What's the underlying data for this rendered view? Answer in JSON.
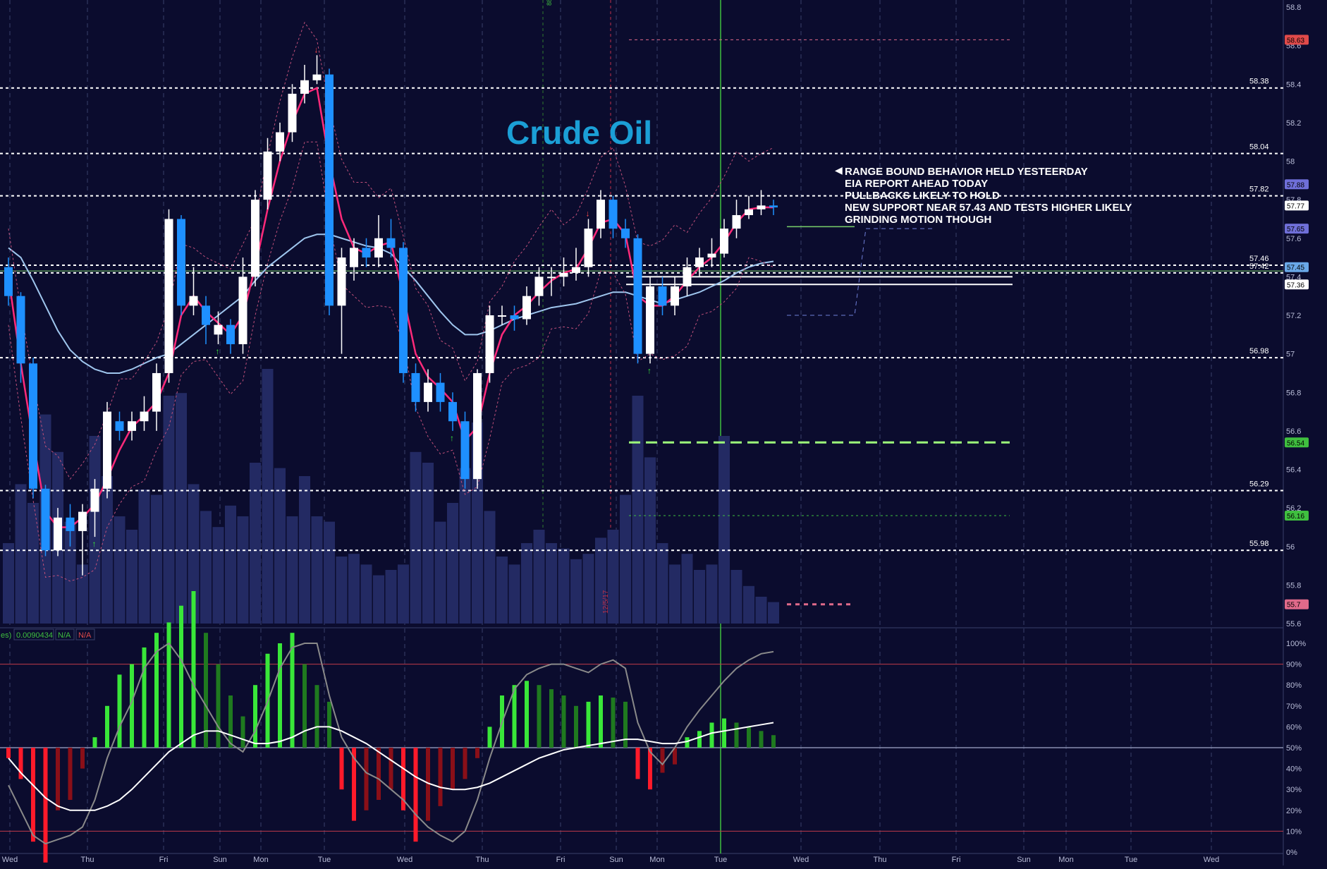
{
  "title": "Crude Oil",
  "annotation": {
    "lines": [
      "RANGE BOUND BEHAVIOR HELD YESTEERDAY",
      "EIA REPORT AHEAD TODAY",
      "PULLBACKS LIKELY TO HOLD",
      "NEW SUPPORT NEAR 57.43 AND TESTS HIGHER LIKELY",
      "GRINDING MOTION THOUGH"
    ]
  },
  "price_axis": {
    "min": 55.6,
    "max": 58.8,
    "ticks": [
      "58.8",
      "58.6",
      "58.4",
      "58.2",
      "58",
      "57.8",
      "57.6",
      "57.4",
      "57.2",
      "57",
      "56.8",
      "56.6",
      "56.4",
      "56.2",
      "56",
      "55.8",
      "55.6"
    ]
  },
  "time_axis": {
    "labels": [
      "Wed",
      "Thu",
      "Fri",
      "Sun",
      "Mon",
      "Tue",
      "Wed",
      "Thu",
      "Fri",
      "Sun",
      "Mon",
      "Tue",
      "Wed",
      "Thu",
      "Fri",
      "Sun",
      "Mon",
      "Tue",
      "Wed"
    ]
  },
  "osc_axis": {
    "ticks": [
      "100%",
      "90%",
      "80%",
      "70%",
      "60%",
      "50%",
      "40%",
      "30%",
      "20%",
      "10%",
      "0%"
    ]
  },
  "indicator_strip": {
    "left_text": "es)",
    "value": "0.0090434",
    "na1": "N/A",
    "na2": "N/A"
  },
  "vertical_marker_text": "12/5/17",
  "top_marker_text": "88",
  "chart_data": {
    "type": "candlestick",
    "title": "Crude Oil",
    "ylim": [
      55.6,
      58.8
    ],
    "colors": {
      "up": "#ffffff",
      "down": "#1e90ff",
      "ma_fast": "#ff2a7a",
      "ma_slow": "#9fc6ee",
      "volume": "#232a63",
      "support": "#9dff7a"
    },
    "levels": [
      {
        "value": 58.38,
        "label": "58.38"
      },
      {
        "value": 58.04,
        "label": "58.04"
      },
      {
        "value": 57.82,
        "label": "57.82"
      },
      {
        "value": 57.46,
        "label": "57.46"
      },
      {
        "value": 57.42,
        "label": "57.42"
      },
      {
        "value": 56.98,
        "label": "56.98"
      },
      {
        "value": 56.29,
        "label": "56.29"
      },
      {
        "value": 55.98,
        "label": "55.98"
      }
    ],
    "price_badges": [
      {
        "value": 58.63,
        "label": "58.63",
        "color": "#e04a4a"
      },
      {
        "value": 57.88,
        "label": "57.88",
        "color": "#6f6fd8"
      },
      {
        "value": 57.77,
        "label": "57.77",
        "color": "#ffffff"
      },
      {
        "value": 57.65,
        "label": "57.65",
        "color": "#6f6fd8"
      },
      {
        "value": 57.45,
        "label": "57.45",
        "color": "#6aa8e8"
      },
      {
        "value": 57.36,
        "label": "57.36",
        "color": "#ffffff"
      },
      {
        "value": 56.54,
        "label": "56.54",
        "color": "#3fbf3f"
      },
      {
        "value": 56.16,
        "label": "56.16",
        "color": "#3fbf3f"
      },
      {
        "value": 55.7,
        "label": "55.7",
        "color": "#e06a8a"
      }
    ],
    "candles": [
      [
        57.45,
        57.3,
        57.5,
        57.25
      ],
      [
        57.3,
        56.95,
        57.32,
        56.85
      ],
      [
        56.95,
        56.3,
        56.98,
        56.25
      ],
      [
        56.3,
        55.98,
        56.32,
        55.95
      ],
      [
        55.98,
        56.15,
        56.2,
        55.95
      ],
      [
        56.15,
        56.08,
        56.22,
        56.0
      ],
      [
        56.08,
        56.18,
        56.22,
        55.85
      ],
      [
        56.18,
        56.3,
        56.35,
        56.05
      ],
      [
        56.3,
        56.7,
        56.75,
        56.25
      ],
      [
        56.65,
        56.6,
        56.7,
        56.55
      ],
      [
        56.6,
        56.65,
        56.7,
        56.55
      ],
      [
        56.65,
        56.7,
        56.78,
        56.6
      ],
      [
        56.7,
        56.9,
        56.95,
        56.6
      ],
      [
        56.9,
        57.7,
        57.75,
        56.85
      ],
      [
        57.7,
        57.25,
        57.72,
        57.2
      ],
      [
        57.25,
        57.3,
        57.45,
        57.2
      ],
      [
        57.25,
        57.15,
        57.3,
        57.05
      ],
      [
        57.1,
        57.15,
        57.22,
        57.05
      ],
      [
        57.15,
        57.05,
        57.18,
        57.0
      ],
      [
        57.05,
        57.4,
        57.5,
        57.0
      ],
      [
        57.4,
        57.8,
        57.85,
        57.35
      ],
      [
        57.8,
        58.05,
        58.12,
        57.75
      ],
      [
        58.05,
        58.15,
        58.2,
        58.0
      ],
      [
        58.15,
        58.35,
        58.4,
        58.1
      ],
      [
        58.35,
        58.42,
        58.5,
        58.3
      ],
      [
        58.42,
        58.45,
        58.55,
        58.4
      ],
      [
        58.45,
        57.25,
        58.48,
        57.2
      ],
      [
        57.25,
        57.5,
        57.55,
        57.0
      ],
      [
        57.45,
        57.55,
        57.6,
        57.38
      ],
      [
        57.55,
        57.5,
        57.6,
        57.45
      ],
      [
        57.5,
        57.6,
        57.72,
        57.45
      ],
      [
        57.6,
        57.55,
        57.7,
        57.5
      ],
      [
        57.55,
        56.9,
        57.58,
        56.85
      ],
      [
        56.9,
        56.75,
        56.95,
        56.7
      ],
      [
        56.75,
        56.85,
        56.92,
        56.7
      ],
      [
        56.85,
        56.75,
        56.9,
        56.7
      ],
      [
        56.75,
        56.65,
        56.8,
        56.6
      ],
      [
        56.65,
        56.35,
        56.7,
        56.3
      ],
      [
        56.35,
        56.9,
        56.92,
        56.3
      ],
      [
        56.9,
        57.2,
        57.25,
        56.85
      ],
      [
        57.2,
        57.2,
        57.25,
        57.15
      ],
      [
        57.2,
        57.18,
        57.25,
        57.12
      ],
      [
        57.18,
        57.3,
        57.35,
        57.15
      ],
      [
        57.3,
        57.4,
        57.45,
        57.25
      ],
      [
        57.4,
        57.4,
        57.45,
        57.3
      ],
      [
        57.4,
        57.42,
        57.5,
        57.35
      ],
      [
        57.42,
        57.45,
        57.55,
        57.38
      ],
      [
        57.45,
        57.65,
        57.7,
        57.4
      ],
      [
        57.65,
        57.8,
        57.85,
        57.6
      ],
      [
        57.8,
        57.65,
        57.82,
        57.6
      ],
      [
        57.65,
        57.6,
        57.7,
        57.55
      ],
      [
        57.6,
        57.0,
        57.62,
        56.95
      ],
      [
        57.0,
        57.35,
        57.4,
        56.95
      ],
      [
        57.35,
        57.25,
        57.4,
        57.2
      ],
      [
        57.25,
        57.35,
        57.4,
        57.2
      ],
      [
        57.35,
        57.45,
        57.5,
        57.3
      ],
      [
        57.45,
        57.5,
        57.55,
        57.4
      ],
      [
        57.5,
        57.52,
        57.6,
        57.45
      ],
      [
        57.52,
        57.65,
        57.7,
        57.5
      ],
      [
        57.65,
        57.72,
        57.8,
        57.6
      ],
      [
        57.72,
        57.75,
        57.82,
        57.7
      ],
      [
        57.75,
        57.77,
        57.85,
        57.72
      ],
      [
        57.77,
        57.76,
        57.8,
        57.72
      ]
    ],
    "volume": [
      30,
      52,
      45,
      78,
      64,
      38,
      22,
      70,
      55,
      40,
      35,
      50,
      48,
      85,
      86,
      52,
      42,
      36,
      44,
      40,
      60,
      95,
      58,
      40,
      55,
      40,
      38,
      25,
      26,
      22,
      18,
      20,
      22,
      64,
      60,
      38,
      45,
      58,
      75,
      42,
      25,
      22,
      30,
      35,
      30,
      28,
      24,
      26,
      32,
      35,
      48,
      85,
      62,
      30,
      22,
      26,
      20,
      22,
      70,
      20,
      14,
      10,
      8
    ],
    "ma_fast": [
      57.4,
      56.95,
      56.55,
      56.18,
      56.1,
      56.1,
      56.15,
      56.22,
      56.35,
      56.5,
      56.62,
      56.68,
      56.75,
      56.9,
      57.2,
      57.3,
      57.22,
      57.16,
      57.1,
      57.2,
      57.45,
      57.75,
      58.0,
      58.2,
      58.35,
      58.38,
      58.0,
      57.7,
      57.55,
      57.52,
      57.56,
      57.58,
      57.3,
      57.0,
      56.88,
      56.82,
      56.75,
      56.55,
      56.62,
      56.9,
      57.1,
      57.2,
      57.25,
      57.32,
      57.38,
      57.42,
      57.44,
      57.55,
      57.68,
      57.7,
      57.62,
      57.3,
      57.25,
      57.25,
      57.3,
      57.38,
      57.45,
      57.5,
      57.58,
      57.68,
      57.75,
      57.76,
      57.76
    ],
    "ma_slow": [
      57.55,
      57.5,
      57.38,
      57.25,
      57.12,
      57.02,
      56.96,
      56.92,
      56.9,
      56.9,
      56.92,
      56.95,
      56.98,
      57.0,
      57.05,
      57.1,
      57.15,
      57.2,
      57.25,
      57.3,
      57.38,
      57.45,
      57.5,
      57.55,
      57.6,
      57.62,
      57.62,
      57.6,
      57.58,
      57.56,
      57.55,
      57.52,
      57.45,
      57.38,
      57.3,
      57.22,
      57.15,
      57.1,
      57.1,
      57.12,
      57.15,
      57.18,
      57.2,
      57.22,
      57.24,
      57.25,
      57.26,
      57.28,
      57.3,
      57.32,
      57.32,
      57.3,
      57.28,
      57.26,
      57.28,
      57.3,
      57.32,
      57.35,
      57.38,
      57.42,
      57.45,
      57.47,
      57.48
    ],
    "osc_hist": [
      -5,
      -15,
      -45,
      -55,
      -30,
      -25,
      -10,
      5,
      20,
      35,
      40,
      48,
      55,
      60,
      68,
      75,
      55,
      40,
      25,
      15,
      30,
      45,
      50,
      55,
      40,
      30,
      22,
      -20,
      -35,
      -30,
      -25,
      -20,
      -30,
      -45,
      -35,
      -28,
      -20,
      -15,
      -5,
      10,
      25,
      30,
      32,
      30,
      28,
      25,
      20,
      22,
      25,
      24,
      22,
      -15,
      -20,
      -12,
      -8,
      5,
      8,
      12,
      14,
      12,
      10,
      8,
      6
    ],
    "osc_stoch": [
      32,
      20,
      8,
      4,
      6,
      8,
      12,
      25,
      45,
      60,
      72,
      88,
      96,
      100,
      92,
      80,
      70,
      60,
      52,
      48,
      58,
      72,
      88,
      98,
      100,
      100,
      75,
      55,
      45,
      38,
      35,
      30,
      25,
      18,
      12,
      8,
      5,
      10,
      25,
      45,
      62,
      78,
      85,
      88,
      90,
      90,
      88,
      86,
      90,
      92,
      88,
      62,
      48,
      42,
      50,
      60,
      68,
      75,
      82,
      88,
      92,
      95,
      96
    ],
    "osc_signal": [
      45,
      38,
      32,
      26,
      22,
      20,
      20,
      20,
      22,
      25,
      30,
      36,
      42,
      48,
      52,
      56,
      58,
      58,
      56,
      54,
      52,
      52,
      53,
      55,
      58,
      60,
      60,
      58,
      55,
      52,
      48,
      44,
      40,
      36,
      33,
      31,
      30,
      30,
      31,
      33,
      36,
      39,
      42,
      45,
      47,
      49,
      50,
      51,
      52,
      53,
      54,
      54,
      53,
      52,
      52,
      53,
      55,
      57,
      58,
      59,
      60,
      61,
      62
    ],
    "osc_levels": [
      90,
      10
    ]
  }
}
